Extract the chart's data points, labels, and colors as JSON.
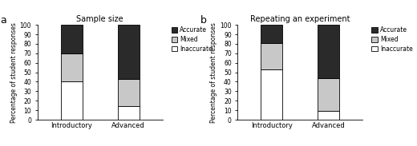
{
  "panel_a": {
    "title": "Sample size",
    "categories": [
      "Introductory",
      "Advanced"
    ],
    "inaccurate": [
      40.0,
      14.5
    ],
    "mixed": [
      30.0,
      28.2
    ],
    "accurate": [
      30.0,
      57.3
    ]
  },
  "panel_b": {
    "title": "Repeating an experiment",
    "categories": [
      "Introductory",
      "Advanced"
    ],
    "inaccurate": [
      53.0,
      9.6
    ],
    "mixed": [
      28.0,
      34.2
    ],
    "accurate": [
      19.0,
      56.1
    ]
  },
  "colors": {
    "inaccurate": "#ffffff",
    "mixed": "#c8c8c8",
    "accurate": "#2a2a2a"
  },
  "ylabel": "Percentage of student responses",
  "ylim": [
    0,
    100
  ],
  "yticks": [
    0,
    10,
    20,
    30,
    40,
    50,
    60,
    70,
    80,
    90,
    100
  ],
  "bar_width": 0.38,
  "edgecolor": "#000000",
  "panel_labels": [
    "a",
    "b"
  ]
}
